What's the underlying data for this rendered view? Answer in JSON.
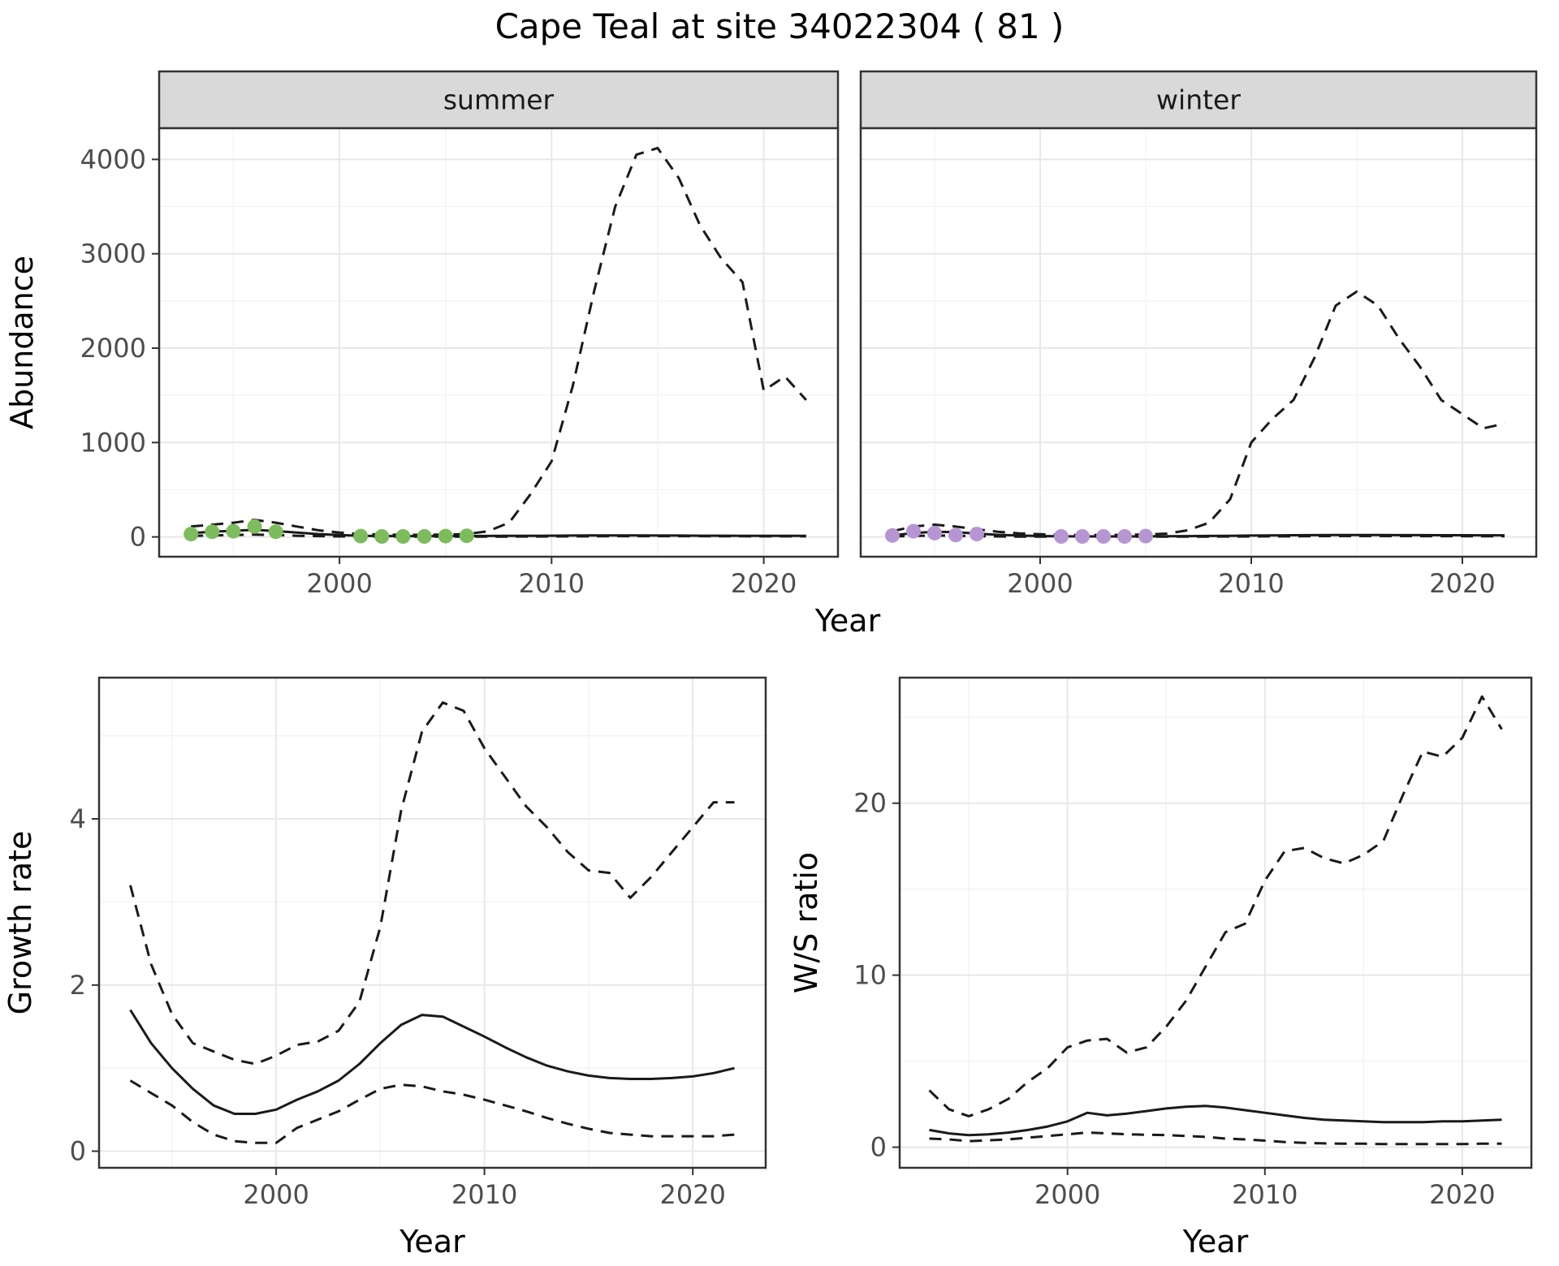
{
  "title": "Cape Teal at site 34022304 ( 81 )",
  "theme": {
    "line_color": "#1a1a1a",
    "summer_point_color": "#7cbc5c",
    "winter_point_color": "#b795d2",
    "strip_bg": "#d9d9d9",
    "strip_text_color": "#1a1a1a",
    "panel_border": "#333333",
    "gridline_major": "#e8e8e8",
    "gridline_minor": "#f3f3f3",
    "tick_label_color": "#4d4d4d",
    "axis_title_color": "#000000"
  },
  "chart_data": [
    {
      "id": "abundance",
      "type": "line",
      "xlabel": "Year",
      "ylabel": "Abundance",
      "xlim": [
        1991.5,
        2023.5
      ],
      "ylim": [
        -210,
        4330
      ],
      "xticks": [
        2000,
        2010,
        2020
      ],
      "yticks": [
        0,
        1000,
        2000,
        3000,
        4000
      ],
      "grid": true,
      "legend": false,
      "years": [
        1993,
        1994,
        1995,
        1996,
        1997,
        1998,
        1999,
        2000,
        2001,
        2002,
        2003,
        2004,
        2005,
        2006,
        2007,
        2008,
        2009,
        2010,
        2011,
        2012,
        2013,
        2014,
        2015,
        2016,
        2017,
        2018,
        2019,
        2020,
        2021,
        2022
      ],
      "facets": [
        {
          "label": "summer",
          "series": [
            {
              "name": "fitted",
              "style": "solid",
              "values": [
                40,
                55,
                65,
                75,
                62,
                45,
                30,
                20,
                12,
                9,
                8,
                8,
                8,
                9,
                10,
                11,
                12,
                13,
                14,
                15,
                15,
                15,
                14,
                14,
                13,
                13,
                12,
                12,
                11,
                11
              ]
            },
            {
              "name": "upper-ci",
              "style": "dashed",
              "values": [
                110,
                130,
                150,
                180,
                150,
                110,
                70,
                45,
                30,
                25,
                22,
                22,
                25,
                30,
                60,
                150,
                450,
                800,
                1600,
                2600,
                3500,
                4050,
                4120,
                3800,
                3300,
                2950,
                2700,
                1550,
                1700,
                1450
              ]
            },
            {
              "name": "lower-ci",
              "style": "dashed",
              "values": [
                10,
                15,
                20,
                25,
                20,
                12,
                8,
                5,
                3,
                2,
                2,
                2,
                2,
                2,
                2,
                3,
                4,
                5,
                6,
                7,
                8,
                8,
                8,
                8,
                8,
                7,
                7,
                6,
                6,
                6
              ]
            }
          ],
          "observed_points": {
            "color_key": "summer_point_color",
            "x": [
              1993,
              1994,
              1995,
              1996,
              1997,
              2001,
              2002,
              2003,
              2004,
              2005,
              2006
            ],
            "y": [
              30,
              55,
              60,
              110,
              55,
              8,
              5,
              5,
              5,
              8,
              12
            ]
          }
        },
        {
          "label": "winter",
          "series": [
            {
              "name": "fitted",
              "style": "solid",
              "values": [
                15,
                40,
                55,
                50,
                35,
                22,
                14,
                9,
                6,
                5,
                5,
                5,
                6,
                7,
                8,
                10,
                12,
                14,
                16,
                18,
                19,
                20,
                20,
                20,
                19,
                19,
                18,
                18,
                17,
                17
              ]
            },
            {
              "name": "upper-ci",
              "style": "dashed",
              "values": [
                60,
                110,
                130,
                110,
                80,
                55,
                38,
                28,
                22,
                20,
                20,
                22,
                26,
                35,
                70,
                150,
                400,
                1000,
                1250,
                1450,
                1900,
                2450,
                2600,
                2450,
                2100,
                1800,
                1450,
                1300,
                1150,
                1200
              ]
            },
            {
              "name": "lower-ci",
              "style": "dashed",
              "values": [
                5,
                10,
                15,
                12,
                8,
                5,
                3,
                2,
                2,
                2,
                2,
                2,
                2,
                2,
                2,
                3,
                4,
                5,
                6,
                7,
                8,
                9,
                9,
                9,
                9,
                8,
                8,
                8,
                7,
                7
              ]
            }
          ],
          "observed_points": {
            "color_key": "winter_point_color",
            "x": [
              1993,
              1994,
              1995,
              1996,
              1997,
              2001,
              2002,
              2003,
              2004,
              2005
            ],
            "y": [
              15,
              60,
              40,
              20,
              30,
              5,
              5,
              5,
              5,
              8
            ]
          }
        }
      ]
    },
    {
      "id": "growth",
      "type": "line",
      "xlabel": "Year",
      "ylabel": "Growth rate",
      "xlim": [
        1991.5,
        2023.5
      ],
      "ylim": [
        -0.2,
        5.7
      ],
      "xticks": [
        2000,
        2010,
        2020
      ],
      "yticks": [
        0,
        2,
        4
      ],
      "grid": true,
      "legend": false,
      "years": [
        1993,
        1994,
        1995,
        1996,
        1997,
        1998,
        1999,
        2000,
        2001,
        2002,
        2003,
        2004,
        2005,
        2006,
        2007,
        2008,
        2009,
        2010,
        2011,
        2012,
        2013,
        2014,
        2015,
        2016,
        2017,
        2018,
        2019,
        2020,
        2021,
        2022
      ],
      "series": [
        {
          "name": "fitted",
          "style": "solid",
          "values": [
            1.7,
            1.3,
            1.0,
            0.75,
            0.55,
            0.45,
            0.45,
            0.5,
            0.62,
            0.72,
            0.85,
            1.05,
            1.3,
            1.52,
            1.64,
            1.62,
            1.5,
            1.38,
            1.25,
            1.13,
            1.03,
            0.96,
            0.91,
            0.88,
            0.87,
            0.87,
            0.88,
            0.9,
            0.94,
            1.0
          ]
        },
        {
          "name": "upper-ci",
          "style": "dashed",
          "values": [
            3.2,
            2.25,
            1.65,
            1.3,
            1.2,
            1.1,
            1.05,
            1.15,
            1.28,
            1.32,
            1.45,
            1.8,
            2.7,
            4.1,
            5.05,
            5.4,
            5.3,
            4.85,
            4.5,
            4.15,
            3.9,
            3.6,
            3.38,
            3.35,
            3.05,
            3.3,
            3.6,
            3.9,
            4.2,
            4.2
          ]
        },
        {
          "name": "lower-ci",
          "style": "dashed",
          "values": [
            0.85,
            0.7,
            0.55,
            0.35,
            0.2,
            0.12,
            0.1,
            0.1,
            0.28,
            0.38,
            0.48,
            0.62,
            0.75,
            0.8,
            0.78,
            0.72,
            0.68,
            0.62,
            0.55,
            0.48,
            0.4,
            0.33,
            0.27,
            0.22,
            0.2,
            0.18,
            0.18,
            0.18,
            0.18,
            0.2
          ]
        }
      ]
    },
    {
      "id": "ws",
      "type": "line",
      "xlabel": "Year",
      "ylabel": "W/S ratio",
      "xlim": [
        1991.5,
        2023.5
      ],
      "ylim": [
        -1.2,
        27.3
      ],
      "xticks": [
        2000,
        2010,
        2020
      ],
      "yticks": [
        0,
        10,
        20
      ],
      "grid": true,
      "legend": false,
      "years": [
        1993,
        1994,
        1995,
        1996,
        1997,
        1998,
        1999,
        2000,
        2001,
        2002,
        2003,
        2004,
        2005,
        2006,
        2007,
        2008,
        2009,
        2010,
        2011,
        2012,
        2013,
        2014,
        2015,
        2016,
        2017,
        2018,
        2019,
        2020,
        2021,
        2022
      ],
      "series": [
        {
          "name": "fitted",
          "style": "solid",
          "values": [
            1.0,
            0.8,
            0.7,
            0.75,
            0.85,
            1.0,
            1.2,
            1.5,
            2.0,
            1.85,
            1.95,
            2.1,
            2.25,
            2.35,
            2.4,
            2.3,
            2.15,
            2.0,
            1.85,
            1.7,
            1.6,
            1.55,
            1.5,
            1.45,
            1.45,
            1.45,
            1.5,
            1.5,
            1.55,
            1.6
          ]
        },
        {
          "name": "upper-ci",
          "style": "dashed",
          "values": [
            3.3,
            2.2,
            1.8,
            2.2,
            2.8,
            3.8,
            4.6,
            5.8,
            6.2,
            6.3,
            5.5,
            5.8,
            7.0,
            8.5,
            10.5,
            12.5,
            13.0,
            15.5,
            17.2,
            17.4,
            16.8,
            16.5,
            17.0,
            17.8,
            20.5,
            23.0,
            22.7,
            23.8,
            26.2,
            24.3
          ]
        },
        {
          "name": "lower-ci",
          "style": "dashed",
          "values": [
            0.5,
            0.45,
            0.35,
            0.4,
            0.45,
            0.55,
            0.65,
            0.75,
            0.85,
            0.8,
            0.75,
            0.72,
            0.7,
            0.65,
            0.6,
            0.5,
            0.45,
            0.38,
            0.3,
            0.25,
            0.22,
            0.2,
            0.2,
            0.18,
            0.18,
            0.18,
            0.18,
            0.18,
            0.2,
            0.2
          ]
        }
      ]
    }
  ]
}
